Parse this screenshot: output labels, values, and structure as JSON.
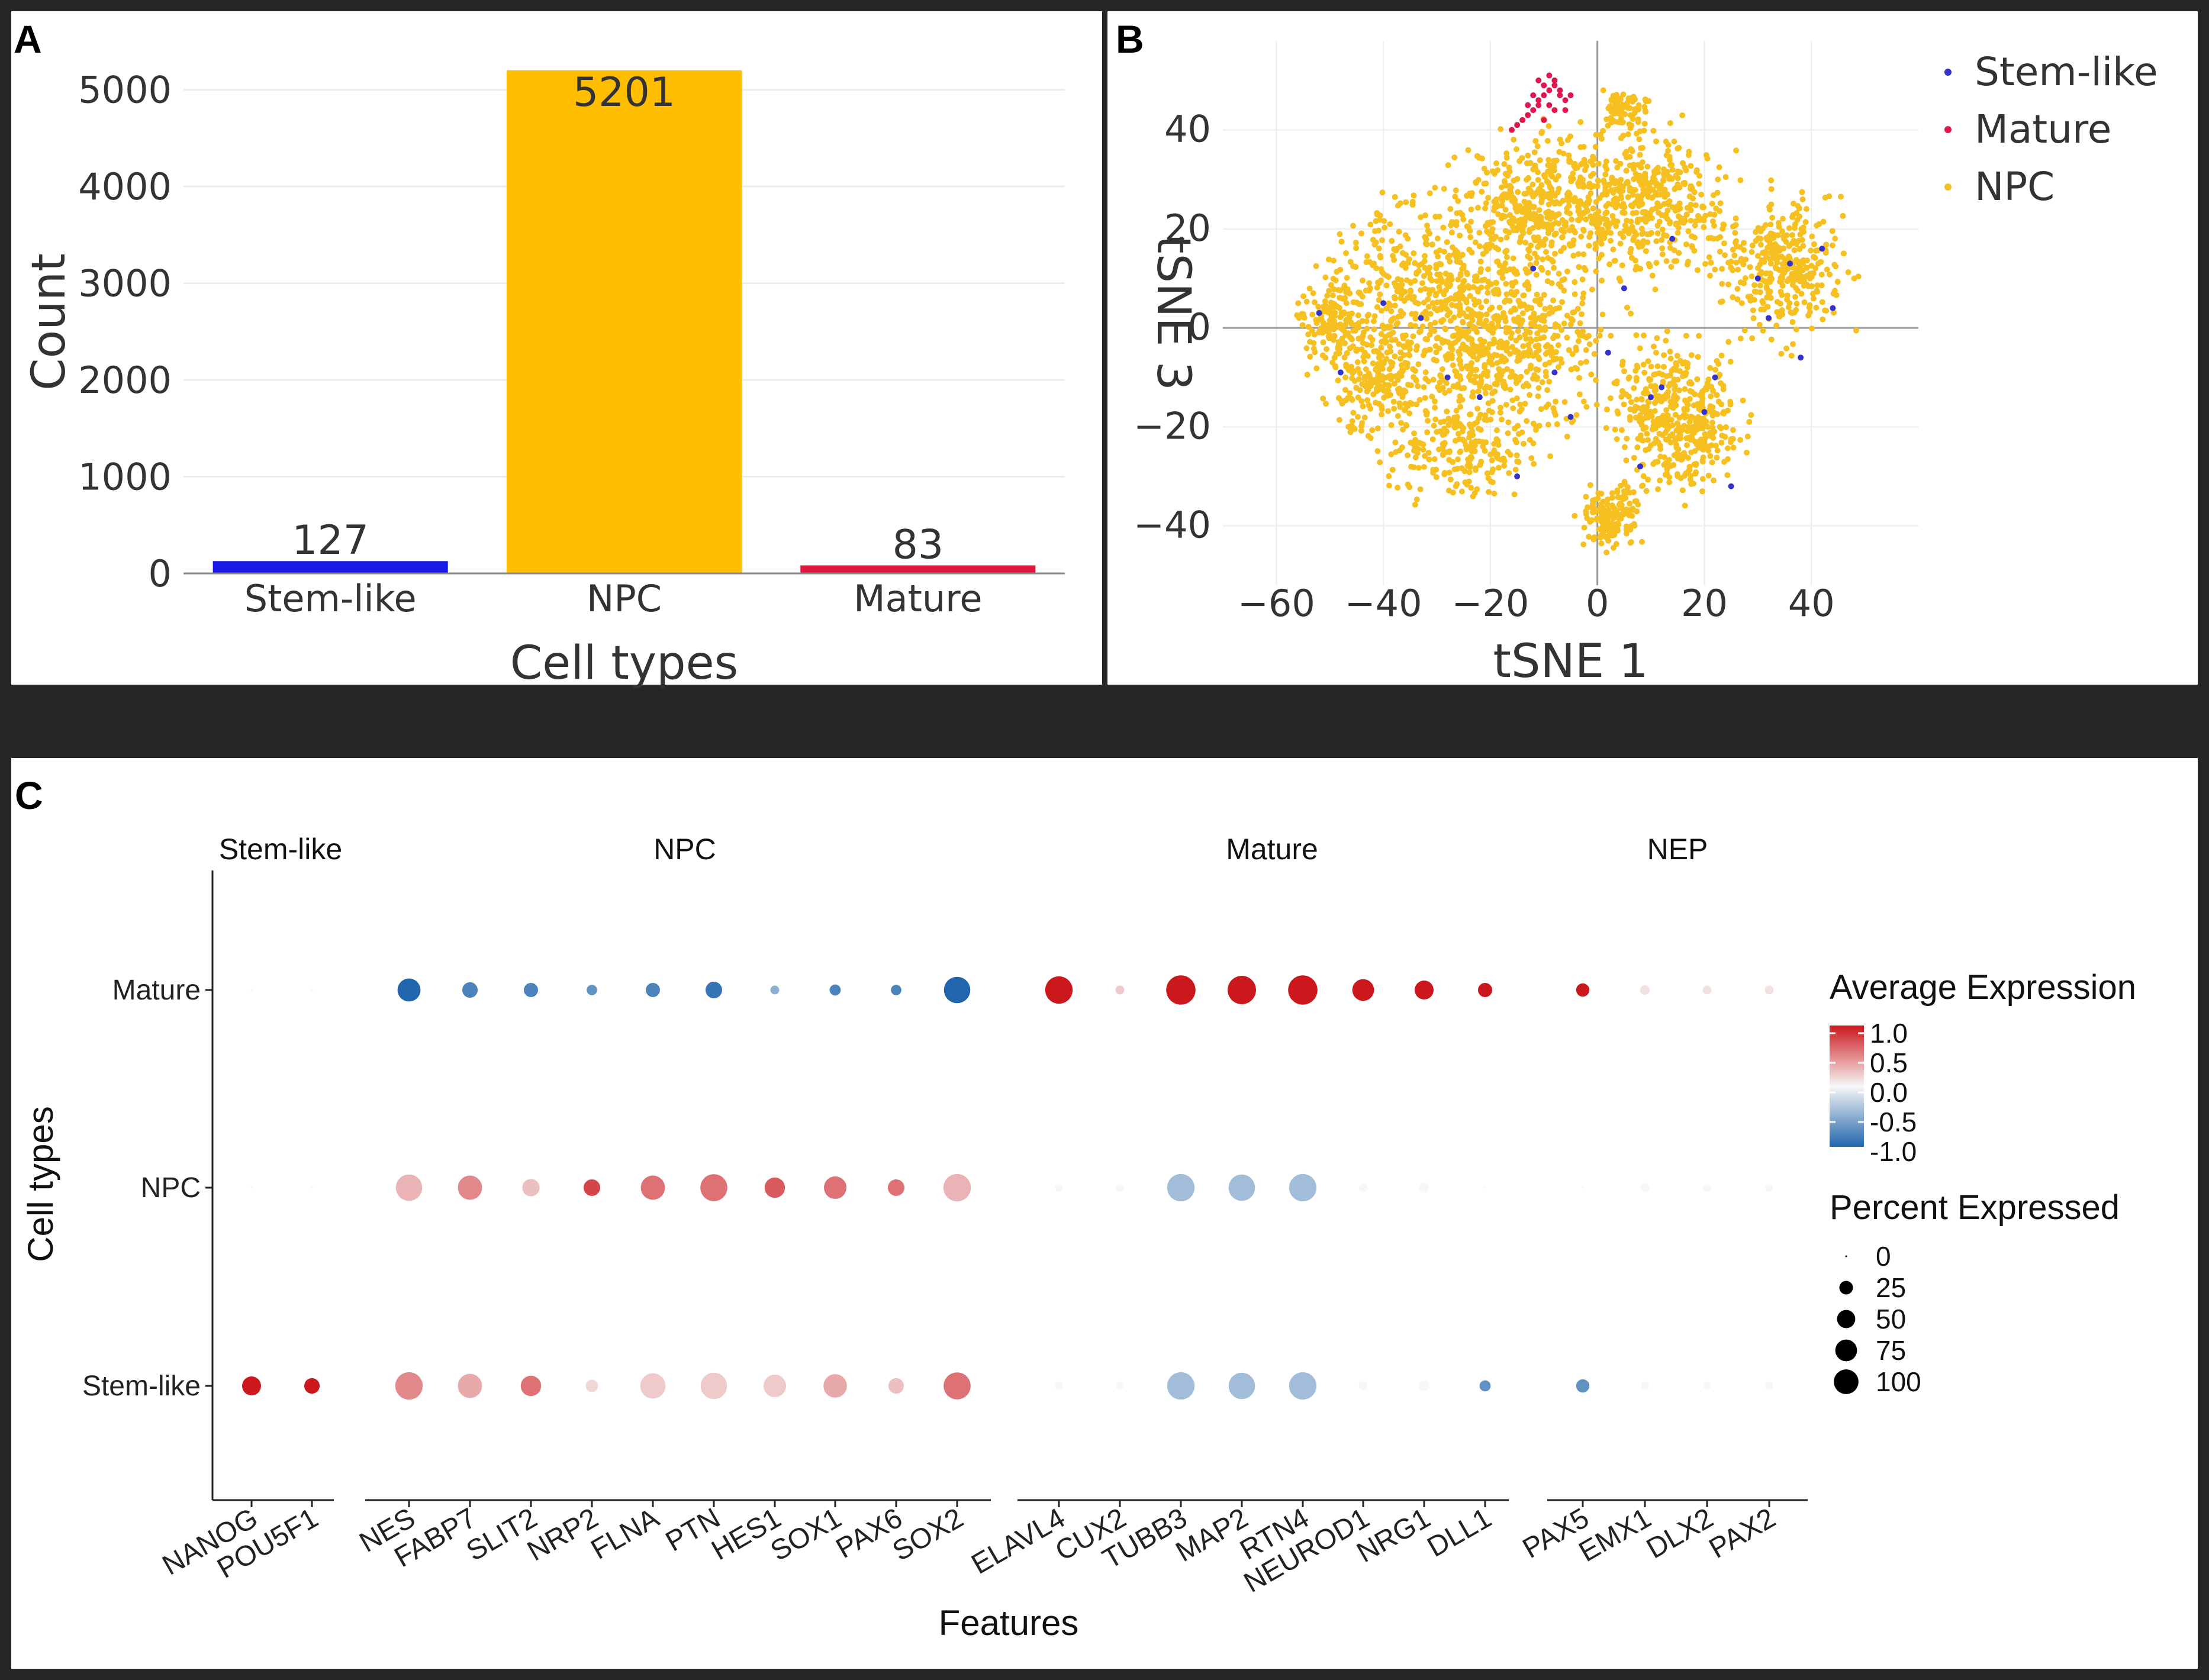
{
  "chart_data": [
    {
      "type": "bar",
      "panel_label": "A",
      "categories": [
        "Stem-like",
        "NPC",
        "Mature"
      ],
      "values": [
        127,
        5201,
        83
      ],
      "value_labels": [
        "127",
        "5201",
        "83"
      ],
      "colors": [
        "#1a1ae6",
        "#ffbf00",
        "#e0173f"
      ],
      "xlabel": "Cell types",
      "ylabel": "Count",
      "ylim": [
        0,
        5200
      ],
      "yticks": [
        0,
        1000,
        2000,
        3000,
        4000,
        5000
      ],
      "ytick_labels": [
        "0",
        "1000",
        "2000",
        "3000",
        "4000",
        "5000"
      ]
    },
    {
      "type": "scatter",
      "panel_label": "B",
      "xlabel": "tSNE 1",
      "ylabel": "tSNE 3",
      "xlim": [
        -70,
        60
      ],
      "ylim": [
        -52,
        58
      ],
      "xticks": [
        -60,
        -40,
        -20,
        0,
        20,
        40
      ],
      "xtick_labels": [
        "−60",
        "−40",
        "−20",
        "0",
        "20",
        "40"
      ],
      "yticks": [
        -40,
        -20,
        0,
        20,
        40
      ],
      "ytick_labels": [
        "−40",
        "−20",
        "0",
        "20",
        "40"
      ],
      "legend_position": "top-right",
      "series": [
        {
          "name": "Stem-like",
          "color": "#3333cc",
          "points": [
            [
              -52,
              3
            ],
            [
              -48,
              -9
            ],
            [
              -33,
              2
            ],
            [
              -12,
              12
            ],
            [
              -8,
              -9
            ],
            [
              -5,
              -18
            ],
            [
              2,
              -5
            ],
            [
              5,
              8
            ],
            [
              10,
              -14
            ],
            [
              12,
              -12
            ],
            [
              14,
              18
            ],
            [
              20,
              -17
            ],
            [
              22,
              -10
            ],
            [
              30,
              10
            ],
            [
              32,
              2
            ],
            [
              36,
              13
            ],
            [
              38,
              -6
            ],
            [
              42,
              16
            ],
            [
              44,
              4
            ],
            [
              -22,
              -14
            ],
            [
              -28,
              -10
            ],
            [
              -40,
              5
            ],
            [
              8,
              -28
            ],
            [
              -15,
              -30
            ],
            [
              25,
              -32
            ]
          ]
        },
        {
          "name": "Mature",
          "color": "#e0174f",
          "points": [
            [
              -8,
              49
            ],
            [
              -9,
              48
            ],
            [
              -10,
              47
            ],
            [
              -7,
              47
            ],
            [
              -11,
              46
            ],
            [
              -9,
              45
            ],
            [
              -12,
              44
            ],
            [
              -8,
              44
            ],
            [
              -13,
              43
            ],
            [
              -10,
              42
            ],
            [
              -14,
              42
            ],
            [
              -15,
              41
            ],
            [
              -16,
              40
            ],
            [
              -11,
              45
            ],
            [
              -7,
              48
            ],
            [
              -6,
              46
            ],
            [
              -10,
              49
            ],
            [
              -9,
              51
            ],
            [
              -8,
              50
            ],
            [
              -12,
              47
            ],
            [
              -13,
              45
            ],
            [
              -6,
              44
            ],
            [
              -5,
              47
            ],
            [
              -11,
              50
            ]
          ]
        },
        {
          "name": "NPC",
          "color": "#f5c020",
          "clusters": [
            {
              "center": [
                -30,
                5
              ],
              "spread": [
                18,
                18
              ],
              "n": 650
            },
            {
              "center": [
                -10,
                25
              ],
              "spread": [
                14,
                12
              ],
              "n": 450
            },
            {
              "center": [
                -42,
                -10
              ],
              "spread": [
                8,
                10
              ],
              "n": 200
            },
            {
              "center": [
                -25,
                -25
              ],
              "spread": [
                12,
                8
              ],
              "n": 200
            },
            {
              "center": [
                10,
                25
              ],
              "spread": [
                12,
                12
              ],
              "n": 400
            },
            {
              "center": [
                35,
                12
              ],
              "spread": [
                10,
                12
              ],
              "n": 350
            },
            {
              "center": [
                15,
                -18
              ],
              "spread": [
                10,
                12
              ],
              "n": 450
            },
            {
              "center": [
                3,
                -38
              ],
              "spread": [
                5,
                6
              ],
              "n": 150
            },
            {
              "center": [
                5,
                44
              ],
              "spread": [
                4,
                4
              ],
              "n": 80
            },
            {
              "center": [
                -15,
                -5
              ],
              "spread": [
                16,
                14
              ],
              "n": 400
            },
            {
              "center": [
                -50,
                2
              ],
              "spread": [
                6,
                6
              ],
              "n": 120
            }
          ]
        }
      ]
    },
    {
      "type": "dot",
      "panel_label": "C",
      "xlabel": "Features",
      "ylabel": "Cell types",
      "groups": [
        {
          "name": "Stem-like",
          "features": [
            "NANOG",
            "POU5F1"
          ]
        },
        {
          "name": "NPC",
          "features": [
            "NES",
            "FABP7",
            "SLIT2",
            "NRP2",
            "FLNA",
            "PTN",
            "HES1",
            "SOX1",
            "PAX6",
            "SOX2"
          ]
        },
        {
          "name": "Mature",
          "features": [
            "ELAVL4",
            "CUX2",
            "TUBB3",
            "MAP2",
            "RTN4",
            "NEUROD1",
            "NRG1",
            "DLL1"
          ]
        },
        {
          "name": "NEP",
          "features": [
            "PAX5",
            "EMX1",
            "DLX2",
            "PAX2"
          ]
        }
      ],
      "rows": [
        "Mature",
        "NPC",
        "Stem-like"
      ],
      "avg_expression": {
        "Mature": [
          0,
          0,
          -1.0,
          -0.8,
          -0.8,
          -0.7,
          -0.8,
          -0.9,
          -0.5,
          -0.8,
          -0.8,
          -1.0,
          1.0,
          0.2,
          1.0,
          1.0,
          1.0,
          1.0,
          1.0,
          1.0,
          1.0,
          0.1,
          0.1,
          0.1
        ],
        "NPC": [
          0,
          0,
          0.3,
          0.5,
          0.25,
          0.8,
          0.6,
          0.6,
          0.7,
          0.6,
          0.6,
          0.3,
          0,
          0,
          -0.4,
          -0.4,
          -0.4,
          0,
          0,
          0,
          0,
          0,
          0,
          0
        ],
        "Stem-like": [
          1.0,
          1.0,
          0.5,
          0.35,
          0.6,
          0.15,
          0.2,
          0.2,
          0.2,
          0.35,
          0.25,
          0.6,
          0,
          0,
          -0.4,
          -0.4,
          -0.4,
          0,
          0,
          -0.7,
          -0.7,
          0,
          0,
          0
        ]
      },
      "percent_expressed": {
        "Mature": [
          1,
          1,
          40,
          15,
          12,
          5,
          12,
          18,
          3,
          6,
          5,
          55,
          60,
          3,
          70,
          65,
          70,
          35,
          25,
          12,
          10,
          4,
          3,
          3
        ],
        "NPC": [
          1,
          1,
          55,
          45,
          20,
          18,
          45,
          58,
          30,
          38,
          18,
          60,
          2,
          2,
          60,
          55,
          60,
          3,
          5,
          1,
          1,
          3,
          2,
          2
        ],
        "Stem-like": [
          25,
          15,
          60,
          45,
          30,
          8,
          50,
          55,
          38,
          42,
          15,
          58,
          2,
          2,
          60,
          55,
          60,
          3,
          5,
          6,
          10,
          2,
          2,
          2
        ]
      },
      "legend": {
        "color_title": "Average Expression",
        "color_ticks": [
          "1.0",
          "0.5",
          "0.0",
          "-0.5",
          "-1.0"
        ],
        "size_title": "Percent Expressed",
        "size_ticks": [
          "0",
          "25",
          "50",
          "75",
          "100"
        ]
      }
    }
  ]
}
